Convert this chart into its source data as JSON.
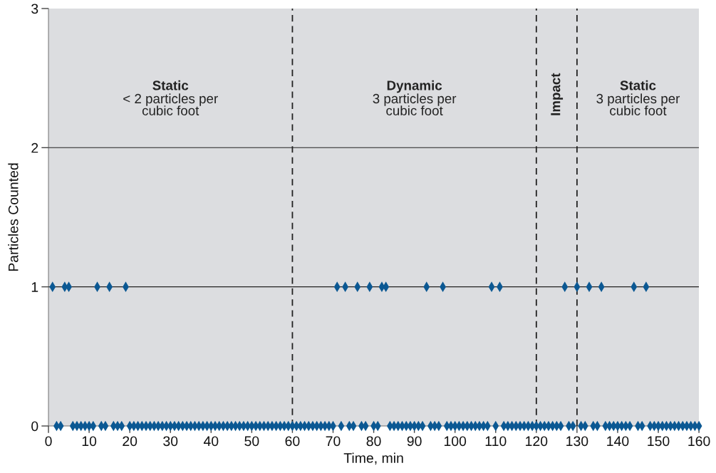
{
  "chart_data": {
    "type": "scatter",
    "xlabel": "Time, min",
    "ylabel": "Particles Counted",
    "x": [
      1,
      2,
      3,
      4,
      5,
      6,
      7,
      8,
      9,
      10,
      11,
      12,
      13,
      14,
      15,
      16,
      17,
      18,
      19,
      20,
      21,
      22,
      23,
      24,
      25,
      26,
      27,
      28,
      29,
      30,
      31,
      32,
      33,
      34,
      35,
      36,
      37,
      38,
      39,
      40,
      41,
      42,
      43,
      44,
      45,
      46,
      47,
      48,
      49,
      50,
      51,
      52,
      53,
      54,
      55,
      56,
      57,
      58,
      59,
      60,
      61,
      62,
      63,
      64,
      65,
      66,
      67,
      68,
      69,
      70,
      71,
      72,
      73,
      74,
      75,
      76,
      77,
      78,
      79,
      80,
      81,
      82,
      83,
      84,
      85,
      86,
      87,
      88,
      89,
      90,
      91,
      92,
      93,
      94,
      95,
      96,
      97,
      98,
      99,
      100,
      101,
      102,
      103,
      104,
      105,
      106,
      107,
      108,
      109,
      110,
      111,
      112,
      113,
      114,
      115,
      116,
      117,
      118,
      119,
      120,
      121,
      122,
      123,
      124,
      125,
      126,
      127,
      128,
      129,
      130,
      131,
      132,
      133,
      134,
      135,
      136,
      137,
      138,
      139,
      140,
      141,
      142,
      143,
      144,
      145,
      146,
      147,
      148,
      149,
      150,
      151,
      152,
      153,
      154,
      155,
      156,
      157,
      158,
      159,
      160
    ],
    "series": [
      {
        "color": "#0b5893",
        "values": [
          1,
          0,
          0,
          1,
          1,
          0,
          0,
          0,
          0,
          0,
          0,
          1,
          0,
          0,
          1,
          0,
          0,
          0,
          1,
          0,
          0,
          0,
          0,
          0,
          0,
          0,
          0,
          0,
          0,
          0,
          0,
          0,
          0,
          0,
          0,
          0,
          0,
          0,
          0,
          0,
          0,
          0,
          0,
          0,
          0,
          0,
          0,
          0,
          0,
          0,
          0,
          0,
          0,
          0,
          0,
          0,
          0,
          0,
          0,
          0,
          0,
          0,
          0,
          0,
          0,
          0,
          0,
          0,
          0,
          0,
          1,
          0,
          1,
          0,
          0,
          1,
          0,
          0,
          1,
          0,
          0,
          1,
          1,
          0,
          0,
          0,
          0,
          0,
          0,
          0,
          0,
          0,
          1,
          0,
          0,
          0,
          1,
          0,
          0,
          0,
          0,
          0,
          0,
          0,
          0,
          0,
          0,
          0,
          1,
          0,
          1,
          0,
          0,
          0,
          0,
          0,
          0,
          0,
          0,
          0,
          0,
          0,
          0,
          0,
          0,
          0,
          1,
          0,
          0,
          1,
          0,
          0,
          1,
          0,
          0,
          1,
          0,
          0,
          0,
          0,
          0,
          0,
          0,
          1,
          0,
          0,
          1,
          0,
          0,
          0,
          0,
          0,
          0,
          0,
          0,
          0,
          0,
          0,
          0,
          0
        ]
      }
    ],
    "xlim": [
      0,
      160
    ],
    "xticks": [
      0,
      10,
      20,
      30,
      40,
      50,
      60,
      70,
      80,
      90,
      100,
      110,
      120,
      130,
      140,
      150,
      160
    ],
    "ylim": [
      0,
      3
    ],
    "yticks": [
      0,
      1,
      2,
      3
    ],
    "grid": "y",
    "marker": "diamond",
    "ref_lines": [
      {
        "axis": "x",
        "value": 60,
        "color": "#222222",
        "line_style": "dashed"
      },
      {
        "axis": "x",
        "value": 120,
        "color": "#222222",
        "line_style": "dashed"
      },
      {
        "axis": "x",
        "value": 130,
        "color": "#222222",
        "line_style": "dashed"
      }
    ],
    "bands": [
      {
        "axis": "x",
        "from": 0,
        "to": 60,
        "label": "Static\n< 2 particles per\ncubic foot",
        "color": "#dcdde0"
      },
      {
        "axis": "x",
        "from": 60,
        "to": 120,
        "label": "Dynamic\n3 particles per\ncubic foot",
        "color": "#dcdde0"
      },
      {
        "axis": "x",
        "from": 120,
        "to": 130,
        "label": "Impact",
        "color": "#dcdde0"
      },
      {
        "axis": "x",
        "from": 130,
        "to": 160,
        "label": "Static\n3 particles per\ncubic foot",
        "color": "#dcdde0"
      }
    ]
  }
}
